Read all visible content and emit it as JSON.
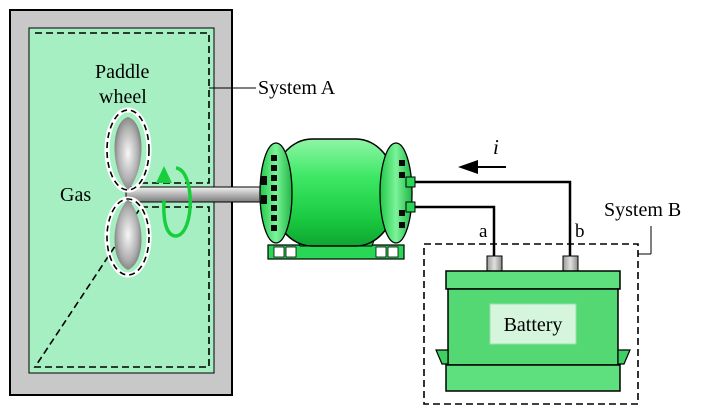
{
  "labels": {
    "paddle_line1": "Paddle",
    "paddle_line2": "wheel",
    "gas": "Gas",
    "system_a": "System A",
    "system_b": "System B",
    "current": "i",
    "terminal_a": "a",
    "terminal_b": "b",
    "battery": "Battery"
  },
  "colors": {
    "tank_gray": "#c8c8c8",
    "gas_green": "#a6efc3",
    "motor_green": "#2fe05a",
    "battery_green": "#5fe07f",
    "arrow_green": "#17cf3c"
  }
}
